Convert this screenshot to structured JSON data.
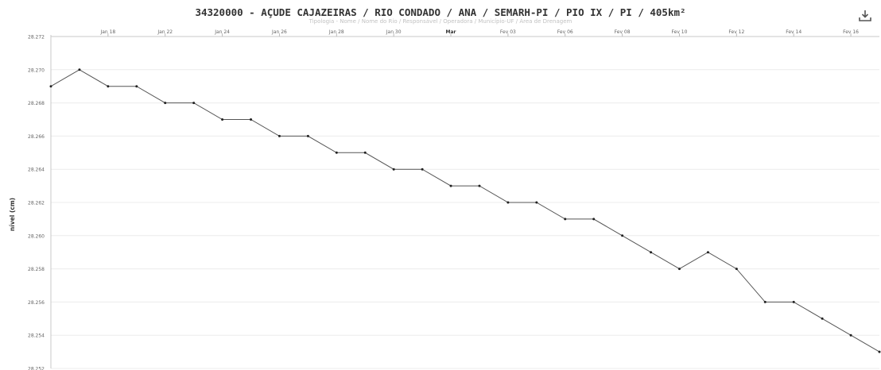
{
  "chart_data": {
    "type": "line",
    "title": "34320000 - AÇUDE CAJAZEIRAS / RIO CONDADO / ANA / SEMARH-PI / PIO IX / PI / 405km²",
    "subtitle": "Tipologia - Nome / Nome do Rio / Responsável / Operadora / Município-UF / Área de Drenagem",
    "ylabel": "nível (cm)",
    "xlabel": "",
    "ylim": [
      28.252,
      28.272
    ],
    "yticks": [
      "28.252",
      "28.254",
      "28.256",
      "28.258",
      "28.260",
      "28.262",
      "28.264",
      "28.266",
      "28.268",
      "28.270",
      "28.272"
    ],
    "xticks": [
      {
        "label": "Jan 18",
        "i": 2
      },
      {
        "label": "Jan 22",
        "i": 4
      },
      {
        "label": "Jan 24",
        "i": 6
      },
      {
        "label": "Jan 26",
        "i": 8
      },
      {
        "label": "Jan 28",
        "i": 10
      },
      {
        "label": "Jan 30",
        "i": 12
      },
      {
        "label": "Mar",
        "i": 14,
        "bold": true
      },
      {
        "label": "Fev 03",
        "i": 16
      },
      {
        "label": "Fev 06",
        "i": 18
      },
      {
        "label": "Fev 08",
        "i": 20
      },
      {
        "label": "Fev 10",
        "i": 22
      },
      {
        "label": "Fev 12",
        "i": 24
      },
      {
        "label": "Fev 14",
        "i": 26
      },
      {
        "label": "Fev 16",
        "i": 28
      }
    ],
    "grid": true,
    "legend": "none",
    "series": [
      {
        "color": "#555555",
        "values": [
          28.269,
          28.27,
          28.269,
          28.269,
          28.268,
          28.268,
          28.267,
          28.267,
          28.266,
          28.266,
          28.265,
          28.265,
          28.264,
          28.264,
          28.263,
          28.263,
          28.262,
          28.262,
          28.261,
          28.261,
          28.26,
          28.259,
          28.258,
          28.259,
          28.258,
          28.256,
          28.256,
          28.255,
          28.254,
          28.253
        ]
      }
    ]
  },
  "download_icon": "download-icon"
}
